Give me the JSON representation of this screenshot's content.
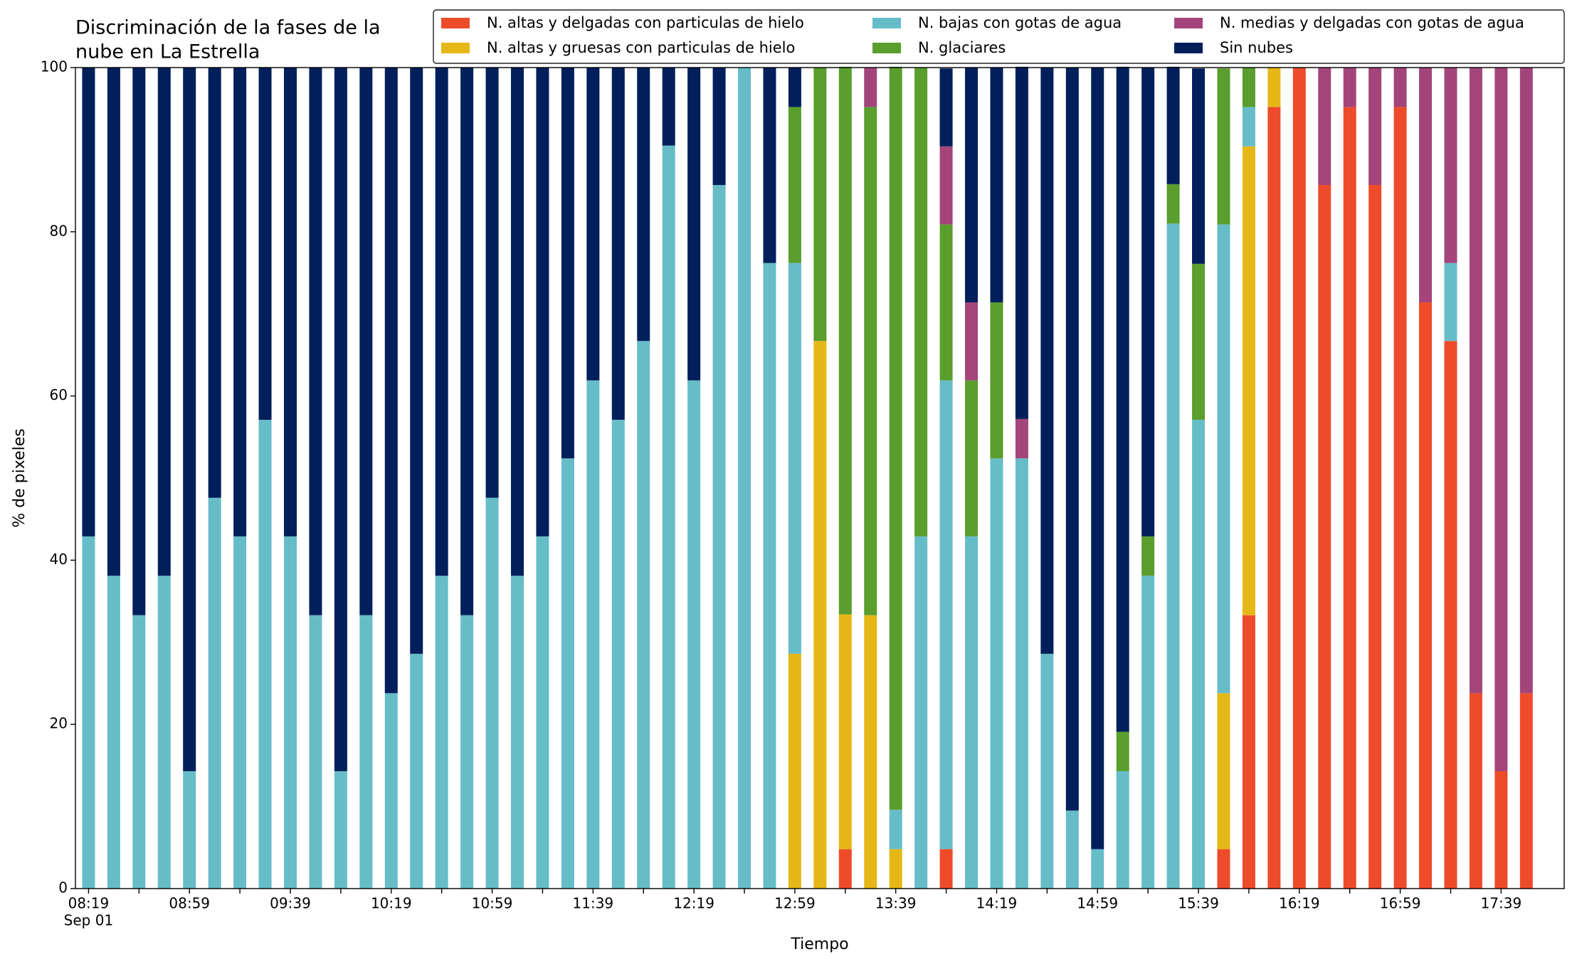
{
  "chart_data": {
    "type": "stacked_bar",
    "title": [
      "Discriminación de la fases de la",
      "nube en La Estrella"
    ],
    "x_label": "Tiempo",
    "y_label": "% de pixeles",
    "x_date_label": "Sep 01",
    "categories": [
      "08:19",
      null,
      null,
      null,
      "08:59",
      null,
      null,
      null,
      "09:39",
      null,
      null,
      null,
      "10:19",
      null,
      null,
      null,
      "10:59",
      null,
      null,
      null,
      "11:39",
      null,
      null,
      null,
      "12:19",
      null,
      null,
      null,
      "12:59",
      null,
      null,
      null,
      "13:39",
      null,
      null,
      null,
      "14:19",
      null,
      null,
      null,
      "14:59",
      null,
      null,
      null,
      "15:39",
      null,
      null,
      null,
      "16:19",
      null,
      null,
      null,
      "16:59",
      null,
      null,
      null,
      "17:39",
      null
    ],
    "ylim": [
      0,
      100
    ],
    "yticks": [
      0,
      20,
      40,
      60,
      80,
      100
    ],
    "legend": "top-right",
    "series": [
      {
        "name": "N. altas y delgadas con particulas de hielo",
        "color": "#ee4b2b",
        "values": [
          0,
          0,
          0,
          0,
          0,
          0,
          0,
          0,
          0,
          0,
          0,
          0,
          0,
          0,
          0,
          0,
          0,
          0,
          0,
          0,
          0,
          0,
          0,
          0,
          0,
          0,
          0,
          0,
          0,
          0,
          4.8,
          0,
          0,
          0,
          4.8,
          0,
          0,
          0,
          0,
          0,
          0,
          0,
          0,
          0,
          0,
          4.8,
          33.3,
          95.2,
          100,
          85.7,
          95.2,
          85.7,
          95.2,
          71.4,
          66.7,
          23.8,
          14.3,
          23.8
        ]
      },
      {
        "name": "N. altas y gruesas con particulas de hielo",
        "color": "#e6b817",
        "values": [
          0,
          0,
          0,
          0,
          0,
          0,
          0,
          0,
          0,
          0,
          0,
          0,
          0,
          0,
          0,
          0,
          0,
          0,
          0,
          0,
          0,
          0,
          0,
          0,
          0,
          0,
          0,
          0,
          28.6,
          66.7,
          28.6,
          33.3,
          4.8,
          0,
          0,
          0,
          0,
          0,
          0,
          0,
          0,
          0,
          0,
          0,
          0,
          19.0,
          57.1,
          4.8,
          0,
          0,
          0,
          0,
          0,
          0,
          0,
          0,
          0,
          0
        ]
      },
      {
        "name": "N. bajas con gotas de agua",
        "color": "#66bdc8",
        "values": [
          42.9,
          38.1,
          33.3,
          38.1,
          14.3,
          47.6,
          42.9,
          57.1,
          42.9,
          33.3,
          14.3,
          33.3,
          23.8,
          28.6,
          38.1,
          33.3,
          47.6,
          38.1,
          42.9,
          52.4,
          61.9,
          57.1,
          66.7,
          90.5,
          61.9,
          85.7,
          100,
          76.2,
          47.6,
          0,
          0,
          0,
          4.8,
          42.9,
          57.1,
          42.9,
          52.4,
          52.4,
          28.6,
          9.5,
          4.8,
          14.3,
          38.1,
          81.0,
          57.1,
          57.1,
          4.8,
          0,
          0,
          0,
          0,
          0,
          0,
          0,
          9.5,
          0,
          0,
          0
        ]
      },
      {
        "name": "N. glaciares",
        "color": "#5a9e2e",
        "values": [
          0,
          0,
          0,
          0,
          0,
          0,
          0,
          0,
          0,
          0,
          0,
          0,
          0,
          0,
          0,
          0,
          0,
          0,
          0,
          0,
          0,
          0,
          0,
          0,
          0,
          0,
          0,
          0,
          19.0,
          33.3,
          66.7,
          61.9,
          90.5,
          57.1,
          19.0,
          19.0,
          19.0,
          0,
          0,
          0,
          0,
          4.8,
          4.8,
          4.8,
          19.0,
          19.0,
          4.8,
          0,
          0,
          0,
          0,
          0,
          0,
          0,
          0,
          0,
          0,
          0
        ]
      },
      {
        "name": "N. medias y delgadas con gotas de agua",
        "color": "#a3457a",
        "values": [
          0,
          0,
          0,
          0,
          0,
          0,
          0,
          0,
          0,
          0,
          0,
          0,
          0,
          0,
          0,
          0,
          0,
          0,
          0,
          0,
          0,
          0,
          0,
          0,
          0,
          0,
          0,
          0,
          0,
          0,
          0,
          4.8,
          0,
          0,
          9.5,
          9.5,
          0,
          4.8,
          0,
          0,
          0,
          0,
          0,
          0,
          0,
          0,
          0,
          0,
          0,
          14.3,
          4.8,
          14.3,
          4.8,
          28.6,
          23.8,
          76.2,
          85.7,
          76.2
        ]
      },
      {
        "name": "Sin nubes",
        "color": "#001f5b",
        "values": [
          57.1,
          61.9,
          66.7,
          61.9,
          85.7,
          52.4,
          57.1,
          42.9,
          57.1,
          66.7,
          85.7,
          66.7,
          76.2,
          71.4,
          61.9,
          66.7,
          52.4,
          61.9,
          57.1,
          47.6,
          38.1,
          42.9,
          33.3,
          9.5,
          38.1,
          14.3,
          0,
          23.8,
          4.8,
          0,
          0,
          0,
          0,
          0,
          9.5,
          28.6,
          28.6,
          42.9,
          71.4,
          90.5,
          95.2,
          81.0,
          57.1,
          14.3,
          23.8,
          0,
          0,
          0,
          0,
          0,
          0,
          0,
          0,
          0,
          0,
          0,
          0,
          0
        ]
      }
    ]
  }
}
